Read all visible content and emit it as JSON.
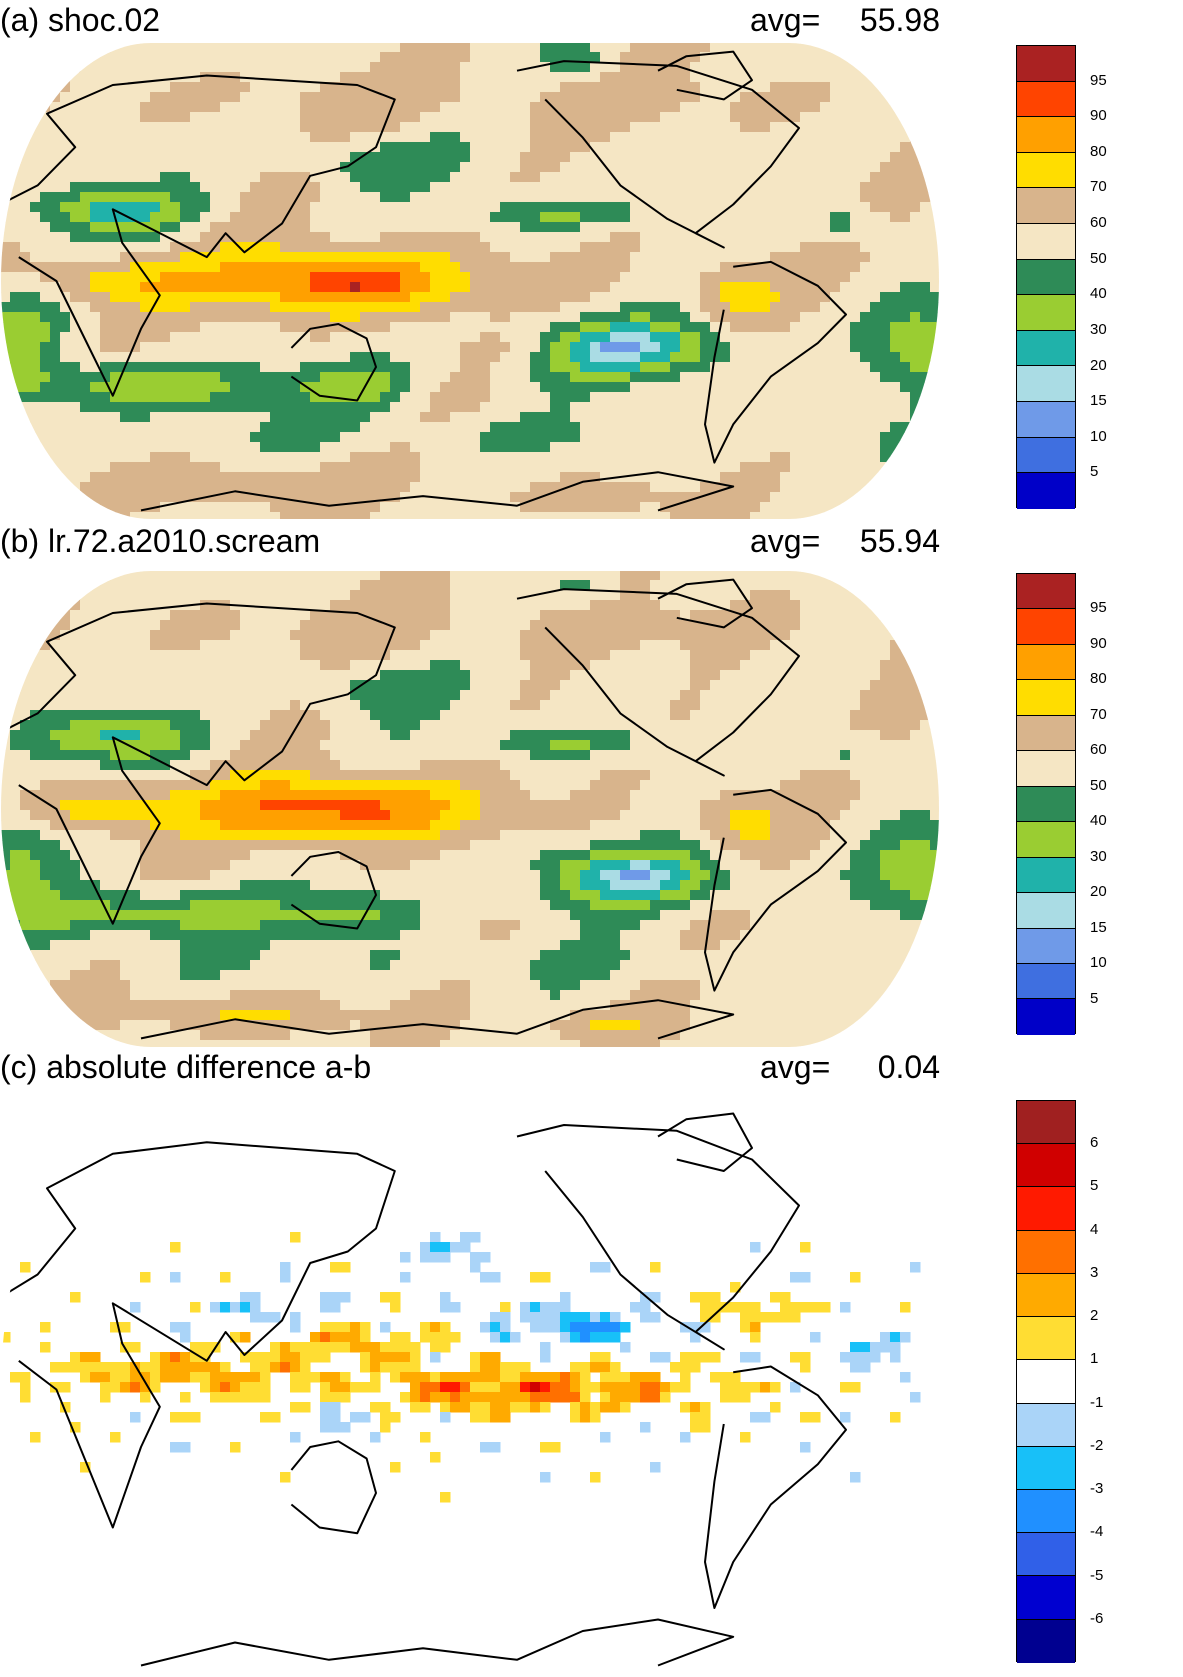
{
  "panels": [
    {
      "id": "a",
      "title": "(a) shoc.02",
      "avg_label": "avg=",
      "avg_value": "55.98",
      "field": "a"
    },
    {
      "id": "b",
      "title": "(b) lr.72.a2010.scream",
      "avg_label": "avg=",
      "avg_value": "55.94",
      "field": "b"
    },
    {
      "id": "c",
      "title": "(c) absolute difference a-b",
      "avg_label": "avg=",
      "avg_value": "0.04",
      "field": "diff"
    }
  ],
  "colorbar_main": {
    "labels": [
      "95",
      "90",
      "80",
      "70",
      "60",
      "50",
      "40",
      "30",
      "20",
      "15",
      "10",
      "5"
    ],
    "colors": [
      "#aa2222",
      "#ff4400",
      "#ffa000",
      "#ffdd00",
      "#d8b48c",
      "#f5e6c4",
      "#2e8b57",
      "#9acd32",
      "#20b2aa",
      "#aadce4",
      "#6f9ae8",
      "#3f6fe0",
      "#0000c8"
    ]
  },
  "colorbar_diff": {
    "labels": [
      "6",
      "5",
      "4",
      "3",
      "2",
      "1",
      "-1",
      "-2",
      "-3",
      "-4",
      "-5",
      "-6"
    ],
    "colors": [
      "#a02020",
      "#d00000",
      "#ff1a00",
      "#ff7000",
      "#ffaa00",
      "#ffdd33",
      "#ffffff",
      "#aad4f8",
      "#18c0f8",
      "#2090ff",
      "#3060e8",
      "#0000d0",
      "#000090"
    ]
  },
  "chart_data": [
    {
      "type": "heatmap",
      "title": "(a) shoc.02",
      "statistic": "avg= 55.98",
      "projection": "global map (Pacific-centered)",
      "color_levels": [
        5,
        10,
        15,
        20,
        30,
        40,
        50,
        60,
        70,
        80,
        90,
        95
      ]
    },
    {
      "type": "heatmap",
      "title": "(b) lr.72.a2010.scream",
      "statistic": "avg= 55.94",
      "projection": "global map (Pacific-centered)",
      "color_levels": [
        5,
        10,
        15,
        20,
        30,
        40,
        50,
        60,
        70,
        80,
        90,
        95
      ]
    },
    {
      "type": "heatmap",
      "title": "(c) absolute difference a-b",
      "statistic": "avg= 0.04",
      "projection": "global map (Pacific-centered)",
      "color_levels": [
        -6,
        -5,
        -4,
        -3,
        -2,
        -1,
        1,
        2,
        3,
        4,
        5,
        6
      ]
    }
  ]
}
